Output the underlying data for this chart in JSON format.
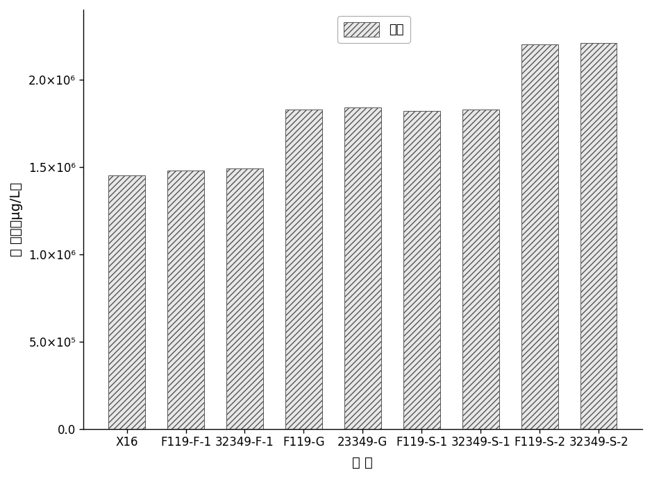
{
  "categories": [
    "X16",
    "F119-F-1",
    "32349-F-1",
    "F119-G",
    "23349-G",
    "F119-S-1",
    "32349-S-1",
    "F119-S-2",
    "32349-S-2"
  ],
  "values": [
    1450000,
    1480000,
    1490000,
    1830000,
    1840000,
    1820000,
    1830000,
    2200000,
    2210000
  ],
  "bar_color": "#e8e8e8",
  "hatch": "////",
  "ylabel": "浓 度／（μg/L）",
  "xlabel": "组 别",
  "legend_label": "酯类",
  "ylim": [
    0,
    2400000
  ],
  "ytick_values": [
    0,
    500000,
    1000000,
    1500000,
    2000000
  ],
  "ytick_labels": [
    "0.0",
    "5.0×10⁵",
    "1.0×10⁶",
    "1.5×10⁶",
    "2.0×10⁶"
  ],
  "background_color": "#ffffff",
  "bar_edge_color": "#555555",
  "axis_fontsize": 14,
  "tick_fontsize": 12,
  "legend_fontsize": 13
}
